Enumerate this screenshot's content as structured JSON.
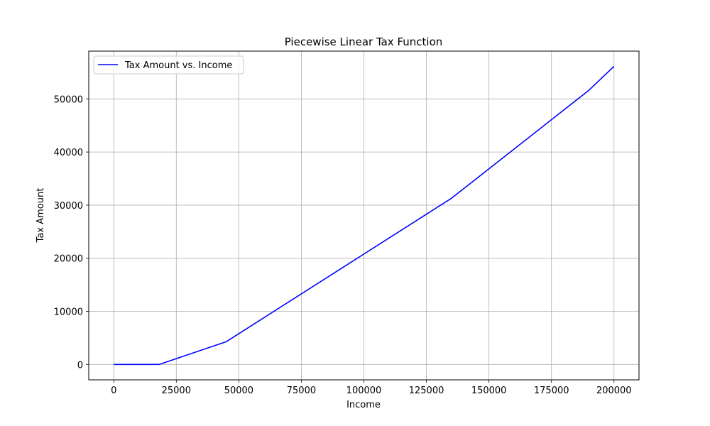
{
  "chart_data": {
    "type": "line",
    "title": "Piecewise Linear Tax Function",
    "xlabel": "Income",
    "ylabel": "Tax Amount",
    "xlim": [
      -10000,
      210000
    ],
    "ylim": [
      -2900,
      59000
    ],
    "xticks": [
      0,
      25000,
      50000,
      75000,
      100000,
      125000,
      150000,
      175000,
      200000
    ],
    "yticks": [
      0,
      10000,
      20000,
      30000,
      40000,
      50000
    ],
    "grid": true,
    "legend_position": "upper-left",
    "series": [
      {
        "name": "Tax Amount vs. Income",
        "color": "#0000ff",
        "x": [
          0,
          18200,
          45000,
          135000,
          190000,
          200000
        ],
        "y": [
          0,
          0,
          4288,
          31288,
          51638,
          56138
        ]
      }
    ]
  }
}
